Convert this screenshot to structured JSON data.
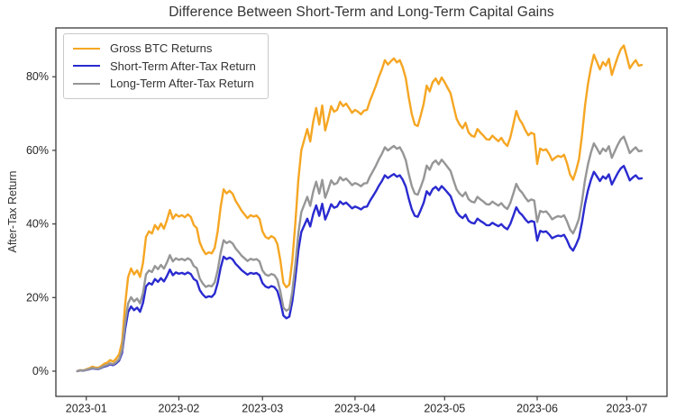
{
  "title": "Difference Between Short-Term and Long-Term Capital Gains",
  "y_axis": {
    "label": "After-Tax Return",
    "ticks": [
      {
        "label": "0%",
        "value": 0
      },
      {
        "label": "20%",
        "value": 20
      },
      {
        "label": "40%",
        "value": 40
      },
      {
        "label": "60%",
        "value": 60
      },
      {
        "label": "80%",
        "value": 80
      }
    ]
  },
  "x_axis": {
    "ticks": [
      {
        "label": "2023-01",
        "day_index": 3
      },
      {
        "label": "2023-02",
        "day_index": 34
      },
      {
        "label": "2023-03",
        "day_index": 62
      },
      {
        "label": "2023-04",
        "day_index": 93
      },
      {
        "label": "2023-05",
        "day_index": 123
      },
      {
        "label": "2023-06",
        "day_index": 154
      },
      {
        "label": "2023-07",
        "day_index": 184
      }
    ]
  },
  "legend": {
    "items": [
      {
        "label": "Gross BTC Returns",
        "color": "#F5A623"
      },
      {
        "label": "Short-Term After-Tax Return",
        "color": "#2A2AD0"
      },
      {
        "label": "Long-Term After-Tax Return",
        "color": "#969696"
      }
    ]
  },
  "chart_data": {
    "type": "line",
    "title": "Difference Between Short-Term and Long-Term Capital Gains",
    "xlabel": "",
    "ylabel": "After-Tax Return",
    "unit": "percent",
    "frequency": "daily",
    "x_start_date": "2022-12-29",
    "x_end_date": "2023-07-06",
    "n_points": 190,
    "ylim": [
      -6.9,
      93.3
    ],
    "grid": false,
    "legend_position": "upper-left",
    "series": [
      {
        "name": "Gross BTC Returns",
        "color": "#F5A623",
        "values": [
          0.0,
          0.3,
          0.2,
          0.5,
          0.8,
          1.2,
          1.0,
          0.9,
          1.4,
          2.0,
          2.3,
          3.0,
          2.6,
          3.4,
          4.6,
          8.0,
          18.0,
          25.5,
          27.9,
          26.3,
          27.4,
          25.6,
          29.5,
          36.5,
          38.0,
          37.4,
          39.7,
          38.5,
          40.1,
          38.7,
          41.0,
          43.8,
          41.4,
          42.6,
          42.0,
          42.4,
          41.8,
          42.6,
          41.9,
          39.7,
          38.9,
          35.0,
          33.1,
          31.8,
          32.3,
          32.0,
          33.5,
          38.0,
          44.6,
          49.4,
          48.3,
          49.0,
          48.2,
          46.3,
          45.0,
          43.6,
          42.6,
          41.6,
          42.4,
          42.0,
          42.3,
          41.4,
          38.0,
          36.5,
          36.0,
          36.7,
          36.2,
          34.5,
          30.0,
          24.0,
          22.8,
          23.5,
          30.0,
          40.0,
          52.0,
          60.0,
          62.9,
          65.8,
          62.4,
          67.8,
          71.5,
          67.0,
          72.2,
          65.4,
          68.5,
          72.0,
          70.5,
          71.0,
          73.2,
          72.0,
          72.7,
          71.5,
          70.2,
          71.0,
          70.5,
          69.8,
          70.8,
          71.0,
          73.5,
          75.5,
          77.6,
          80.0,
          82.0,
          84.5,
          83.3,
          84.2,
          85.0,
          83.9,
          84.5,
          82.5,
          79.6,
          74.4,
          69.8,
          67.0,
          66.6,
          69.5,
          72.7,
          77.6,
          76.0,
          78.5,
          79.5,
          78.0,
          79.8,
          78.5,
          77.0,
          75.5,
          72.0,
          68.6,
          67.0,
          66.0,
          67.5,
          64.9,
          64.0,
          63.7,
          65.8,
          64.8,
          64.0,
          63.0,
          62.9,
          64.0,
          63.2,
          62.5,
          63.4,
          62.0,
          61.2,
          63.5,
          67.0,
          70.7,
          68.5,
          67.3,
          65.5,
          64.1,
          64.8,
          64.4,
          56.3,
          60.5,
          60.0,
          60.3,
          59.0,
          57.3,
          58.0,
          58.5,
          58.2,
          58.8,
          56.5,
          53.5,
          52.0,
          54.5,
          57.6,
          64.1,
          72.0,
          78.0,
          82.5,
          86.0,
          84.0,
          82.0,
          84.0,
          83.0,
          84.9,
          80.5,
          83.0,
          85.5,
          87.5,
          88.5,
          85.5,
          82.3,
          83.5,
          84.5,
          83.0,
          83.2
        ]
      },
      {
        "name": "Short-Term After-Tax Return",
        "color": "#2A2AD0",
        "derived_from": "Gross BTC Returns",
        "after_tax_factor": 0.63
      },
      {
        "name": "Long-Term After-Tax Return",
        "color": "#969696",
        "derived_from": "Gross BTC Returns",
        "after_tax_factor": 0.72
      }
    ]
  }
}
